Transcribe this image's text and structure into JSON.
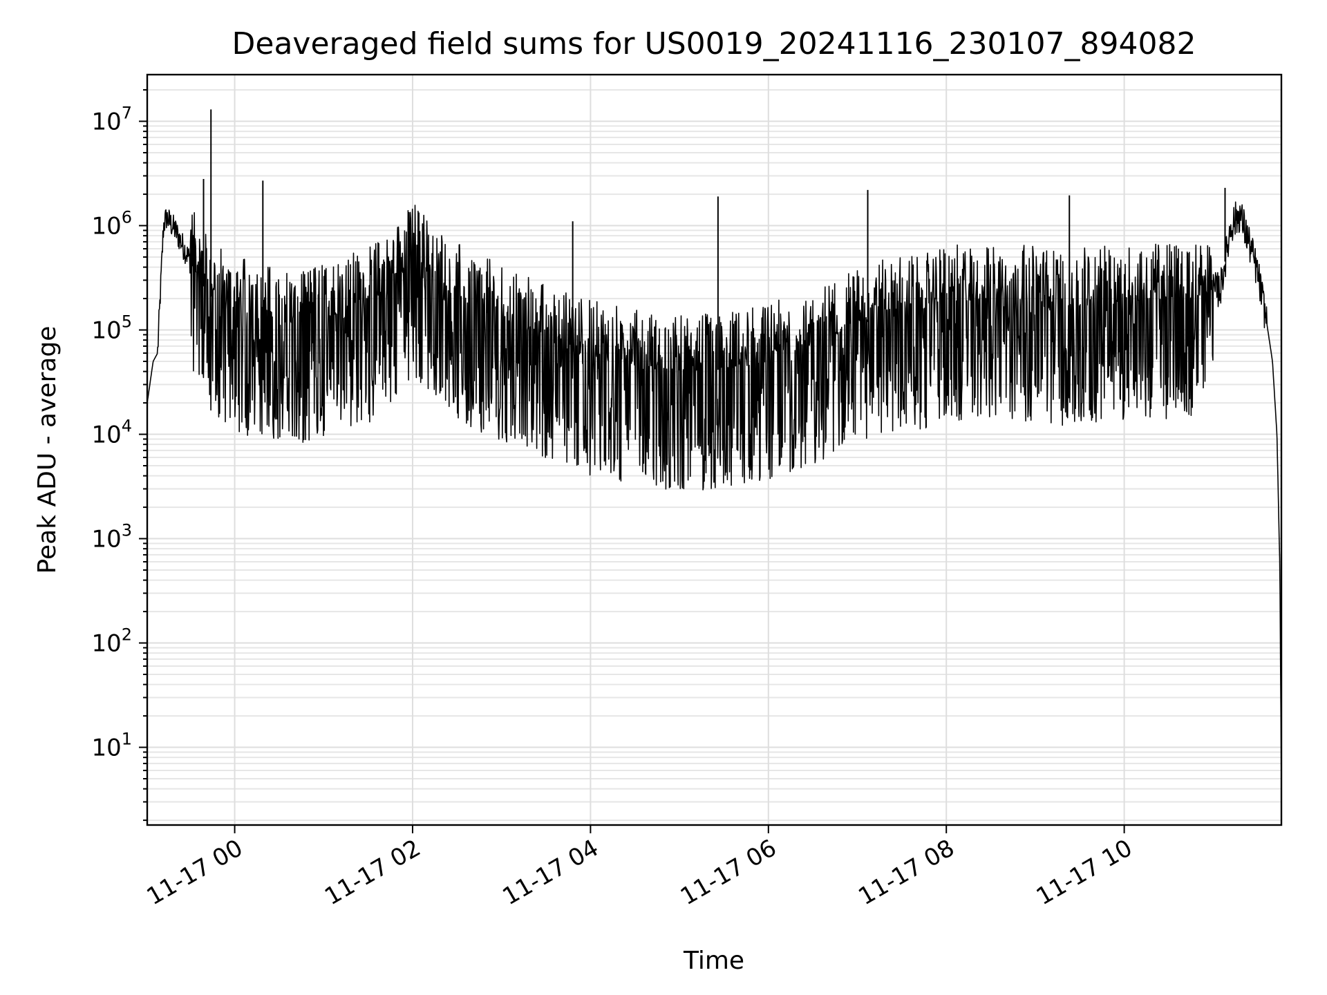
{
  "chart_data": {
    "type": "line",
    "title": "Deaveraged field sums for US0019_20241116_230107_894082",
    "xlabel": "Time",
    "ylabel": "Peak ADU - average",
    "yscale": "log",
    "ylim": [
      1.8,
      28000000
    ],
    "xlim": [
      "2024-11-16 23:01",
      "2024-11-17 11:46"
    ],
    "grid": "major and minor on",
    "x_tick_labels": [
      "11-17 00",
      "11-17 02",
      "11-17 04",
      "11-17 06",
      "11-17 08",
      "11-17 10"
    ],
    "x_ticks": [
      "2024-11-17 00:00",
      "2024-11-17 02:00",
      "2024-11-17 04:00",
      "2024-11-17 06:00",
      "2024-11-17 08:00",
      "2024-11-17 10:00"
    ],
    "y_ticks": [
      10,
      100,
      1000,
      10000,
      100000,
      1000000,
      10000000
    ],
    "series": [
      {
        "color": "#000000",
        "x": [
          "2024-11-16 23:01",
          "2024-11-16 23:05",
          "2024-11-16 23:08",
          "2024-11-16 23:12",
          "2024-11-16 23:14",
          "2024-11-16 23:20",
          "2024-11-16 23:26",
          "2024-11-16 23:32",
          "2024-11-16 23:36",
          "2024-11-16 23:40",
          "2024-11-16 23:45",
          "2024-11-16 23:50",
          "2024-11-16 23:55",
          "2024-11-17 00:05",
          "2024-11-17 00:15",
          "2024-11-17 00:20",
          "2024-11-17 00:30",
          "2024-11-17 00:40",
          "2024-11-17 00:50",
          "2024-11-17 01:00",
          "2024-11-17 01:15",
          "2024-11-17 01:30",
          "2024-11-17 01:45",
          "2024-11-17 01:55",
          "2024-11-17 02:00",
          "2024-11-17 02:15",
          "2024-11-17 02:30",
          "2024-11-17 02:45",
          "2024-11-17 03:00",
          "2024-11-17 03:15",
          "2024-11-17 03:30",
          "2024-11-17 03:40",
          "2024-11-17 03:50",
          "2024-11-17 04:00",
          "2024-11-17 04:15",
          "2024-11-17 04:30",
          "2024-11-17 04:45",
          "2024-11-17 05:00",
          "2024-11-17 05:15",
          "2024-11-17 05:30",
          "2024-11-17 05:45",
          "2024-11-17 06:00",
          "2024-11-17 06:15",
          "2024-11-17 06:30",
          "2024-11-17 06:45",
          "2024-11-17 07:00",
          "2024-11-17 07:15",
          "2024-11-17 07:30",
          "2024-11-17 07:45",
          "2024-11-17 08:00",
          "2024-11-17 08:15",
          "2024-11-17 08:30",
          "2024-11-17 08:45",
          "2024-11-17 09:00",
          "2024-11-17 09:15",
          "2024-11-17 09:30",
          "2024-11-17 09:45",
          "2024-11-17 10:00",
          "2024-11-17 10:15",
          "2024-11-17 10:30",
          "2024-11-17 10:45",
          "2024-11-17 10:55",
          "2024-11-17 11:05",
          "2024-11-17 11:12",
          "2024-11-17 11:18",
          "2024-11-17 11:24",
          "2024-11-17 11:30",
          "2024-11-17 11:36",
          "2024-11-17 11:40",
          "2024-11-17 11:43",
          "2024-11-17 11:45",
          "2024-11-17 11:46"
        ],
        "y": [
          20000,
          50000,
          60000,
          1000000,
          1200000,
          900000,
          600000,
          400000,
          300000,
          250000,
          200000,
          180000,
          150000,
          140000,
          130000,
          120000,
          120000,
          110000,
          120000,
          130000,
          150000,
          180000,
          250000,
          400000,
          500000,
          300000,
          200000,
          150000,
          120000,
          100000,
          80000,
          70000,
          60000,
          55000,
          50000,
          45000,
          42000,
          40000,
          40000,
          42000,
          45000,
          50000,
          60000,
          70000,
          90000,
          110000,
          130000,
          150000,
          160000,
          180000,
          190000,
          200000,
          190000,
          180000,
          170000,
          170000,
          180000,
          180000,
          190000,
          200000,
          200000,
          220000,
          250000,
          1000000,
          1300000,
          700000,
          350000,
          120000,
          50000,
          10000,
          500,
          4
        ]
      }
    ],
    "spikes": [
      {
        "x": "2024-11-16 23:39",
        "y": 2800000
      },
      {
        "x": "2024-11-16 23:44",
        "y": 13000000
      },
      {
        "x": "2024-11-17 00:19",
        "y": 2700000
      },
      {
        "x": "2024-11-17 03:48",
        "y": 1100000
      },
      {
        "x": "2024-11-17 05:26",
        "y": 1900000
      },
      {
        "x": "2024-11-17 07:07",
        "y": 2200000
      },
      {
        "x": "2024-11-17 09:23",
        "y": 1950000
      },
      {
        "x": "2024-11-17 11:08",
        "y": 2300000
      }
    ]
  }
}
